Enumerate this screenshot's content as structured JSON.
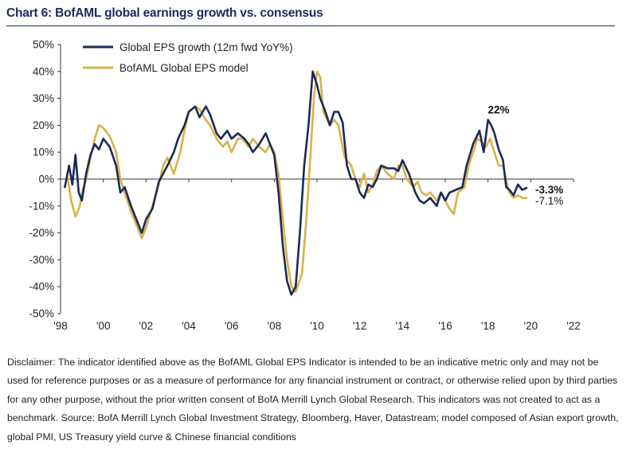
{
  "title": "Chart 6: BofAML global earnings growth vs. consensus",
  "disclaimer": "Disclaimer: The indicator identified above as the BofAML Global EPS Indicator is intended to be an indicative metric only and may not be used for reference purposes or as a measure of performance for any financial instrument or contract, or otherwise relied upon by third parties for any other purpose, without the prior written consent of BofA Merrill Lynch Global Research. This indicators was not created to act as a benchmark. Source: BofA Merrill Lynch Global Investment Strategy, Bloomberg, Haver, Datastream; model composed of Asian export growth, global PMI, US Treasury yield curve & Chinese financial conditions",
  "chart_data": {
    "type": "line",
    "title": "Chart 6: BofAML global earnings growth vs. consensus",
    "xlabel": "",
    "ylabel": "",
    "xlim": [
      1998,
      2022
    ],
    "ylim": [
      -50,
      50
    ],
    "x_ticks": [
      {
        "value": 1998,
        "label": "'98"
      },
      {
        "value": 2000,
        "label": "'00"
      },
      {
        "value": 2002,
        "label": "'02"
      },
      {
        "value": 2004,
        "label": "'04"
      },
      {
        "value": 2006,
        "label": "'06"
      },
      {
        "value": 2008,
        "label": "'08"
      },
      {
        "value": 2010,
        "label": "'10"
      },
      {
        "value": 2012,
        "label": "'12"
      },
      {
        "value": 2014,
        "label": "'14"
      },
      {
        "value": 2016,
        "label": "'16"
      },
      {
        "value": 2018,
        "label": "'18"
      },
      {
        "value": 2020,
        "label": "'20"
      },
      {
        "value": 2022,
        "label": "'22"
      }
    ],
    "y_ticks": [
      {
        "value": 50,
        "label": "50%"
      },
      {
        "value": 40,
        "label": "40%"
      },
      {
        "value": 30,
        "label": "30%"
      },
      {
        "value": 20,
        "label": "20%"
      },
      {
        "value": 10,
        "label": "10%"
      },
      {
        "value": 0,
        "label": "0%"
      },
      {
        "value": -10,
        "label": "-10%"
      },
      {
        "value": -20,
        "label": "-20%"
      },
      {
        "value": -30,
        "label": "-30%"
      },
      {
        "value": -40,
        "label": "-40%"
      },
      {
        "value": -50,
        "label": "-50%"
      }
    ],
    "grid": false,
    "legend_position": "top-left",
    "series": [
      {
        "name": "Global EPS growth (12m fwd YoY%)",
        "color": "#1b2a57",
        "x": [
          1998.2,
          1998.4,
          1998.55,
          1998.7,
          1998.85,
          1999.0,
          1999.2,
          1999.4,
          1999.6,
          1999.8,
          2000.0,
          2000.3,
          2000.6,
          2000.8,
          2001.0,
          2001.3,
          2001.6,
          2001.8,
          2002.0,
          2002.3,
          2002.6,
          2002.8,
          2003.0,
          2003.3,
          2003.5,
          2003.8,
          2004.0,
          2004.3,
          2004.5,
          2004.8,
          2005.0,
          2005.3,
          2005.5,
          2005.8,
          2006.0,
          2006.3,
          2006.6,
          2006.8,
          2007.0,
          2007.3,
          2007.6,
          2007.8,
          2008.0,
          2008.2,
          2008.4,
          2008.6,
          2008.8,
          2009.0,
          2009.2,
          2009.4,
          2009.6,
          2009.8,
          2010.0,
          2010.15,
          2010.35,
          2010.6,
          2010.8,
          2011.0,
          2011.2,
          2011.4,
          2011.6,
          2011.8,
          2012.0,
          2012.2,
          2012.4,
          2012.6,
          2012.8,
          2013.0,
          2013.3,
          2013.6,
          2013.8,
          2014.0,
          2014.3,
          2014.6,
          2014.8,
          2015.0,
          2015.3,
          2015.6,
          2015.8,
          2016.0,
          2016.2,
          2016.5,
          2016.8,
          2017.0,
          2017.3,
          2017.6,
          2017.8,
          2018.0,
          2018.15,
          2018.3,
          2018.5,
          2018.7,
          2018.85,
          2019.0,
          2019.2,
          2019.4,
          2019.6,
          2019.8
        ],
        "y": [
          -3,
          5,
          -2,
          9,
          -5,
          -8,
          2,
          9,
          13,
          11,
          15,
          12,
          5,
          -5,
          -3,
          -10,
          -16,
          -20,
          -15,
          -11,
          -1,
          2,
          5,
          10,
          15,
          20,
          25,
          27,
          23,
          27,
          24,
          17,
          15,
          18,
          15,
          17,
          15,
          13,
          10,
          13,
          17,
          13,
          9,
          -5,
          -25,
          -38,
          -43,
          -40,
          -20,
          5,
          20,
          40,
          35,
          30,
          26,
          20,
          25,
          25,
          21,
          5,
          0,
          0,
          -5,
          -7,
          -2,
          -3,
          0,
          5,
          4,
          4,
          3,
          7,
          2,
          -5,
          -8,
          -9,
          -7,
          -10,
          -5,
          -8,
          -5,
          -4,
          -3,
          5,
          13,
          18,
          10,
          22,
          20,
          17,
          11,
          7,
          -3,
          -4,
          -6,
          -2,
          -4,
          -3.3
        ]
      },
      {
        "name": "BofAML Global EPS model",
        "color": "#d7b24b",
        "x": [
          1998.3,
          1998.5,
          1998.7,
          1998.9,
          1999.0,
          1999.2,
          1999.4,
          1999.6,
          1999.8,
          2000.0,
          2000.3,
          2000.6,
          2000.8,
          2001.0,
          2001.3,
          2001.5,
          2001.8,
          2002.0,
          2002.3,
          2002.6,
          2002.8,
          2003.0,
          2003.3,
          2003.6,
          2003.8,
          2004.0,
          2004.3,
          2004.5,
          2004.8,
          2005.0,
          2005.3,
          2005.6,
          2005.8,
          2006.0,
          2006.3,
          2006.5,
          2006.8,
          2007.0,
          2007.3,
          2007.6,
          2007.8,
          2008.0,
          2008.2,
          2008.4,
          2008.6,
          2008.8,
          2009.0,
          2009.3,
          2009.5,
          2009.7,
          2009.85,
          2010.0,
          2010.15,
          2010.3,
          2010.6,
          2010.8,
          2011.0,
          2011.3,
          2011.6,
          2011.8,
          2012.0,
          2012.2,
          2012.4,
          2012.6,
          2012.8,
          2013.0,
          2013.3,
          2013.6,
          2013.8,
          2014.0,
          2014.2,
          2014.5,
          2014.7,
          2014.9,
          2015.1,
          2015.3,
          2015.6,
          2015.8,
          2016.0,
          2016.2,
          2016.4,
          2016.6,
          2016.9,
          2017.1,
          2017.3,
          2017.5,
          2017.7,
          2017.9,
          2018.1,
          2018.3,
          2018.5,
          2018.7,
          2018.9,
          2019.0,
          2019.2,
          2019.4,
          2019.6,
          2019.8
        ],
        "y": [
          2,
          -8,
          -14,
          -10,
          -5,
          0,
          8,
          15,
          20,
          19,
          16,
          10,
          0,
          -5,
          -12,
          -16,
          -22,
          -18,
          -10,
          -2,
          5,
          8,
          2,
          10,
          18,
          25,
          27,
          26,
          22,
          20,
          15,
          12,
          14,
          10,
          15,
          15,
          12,
          15,
          12,
          10,
          13,
          10,
          2,
          -15,
          -30,
          -40,
          -42,
          -35,
          -15,
          10,
          30,
          40,
          38,
          25,
          20,
          22,
          20,
          8,
          5,
          0,
          -3,
          2,
          -5,
          -2,
          3,
          5,
          2,
          0,
          5,
          5,
          0,
          -3,
          -1,
          -5,
          -6,
          -5,
          -8,
          -5,
          -8,
          -11,
          -13,
          -5,
          -3,
          5,
          10,
          15,
          14,
          12,
          15,
          10,
          5,
          5,
          -2,
          -5,
          -7,
          -6,
          -7,
          -7.1
        ]
      }
    ],
    "annotations": [
      {
        "text": "22%",
        "x": 2018.2,
        "y": 22
      },
      {
        "text": "-3.3%",
        "x": 2019.8,
        "y": -3.3
      },
      {
        "text": "-7.1%",
        "x": 2019.8,
        "y": -7.1
      }
    ]
  }
}
